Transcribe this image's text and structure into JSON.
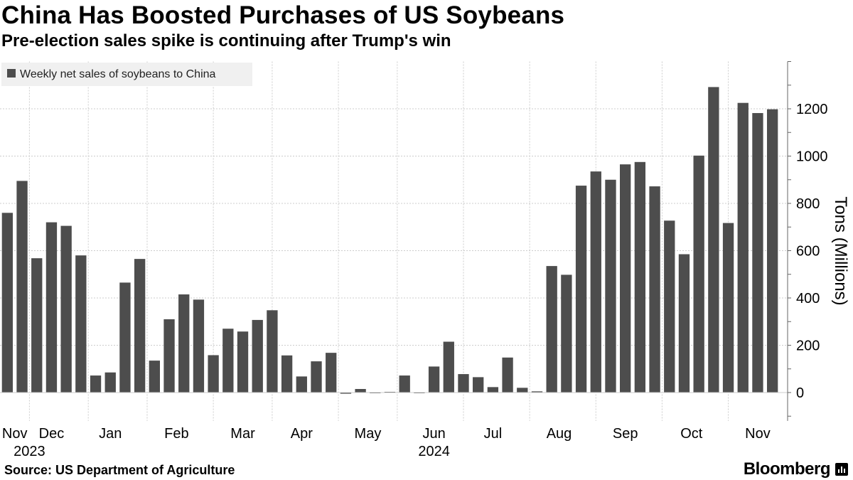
{
  "header": {
    "title": "China Has Boosted Purchases of US Soybeans",
    "subtitle": "Pre-election sales spike is continuing after Trump's win"
  },
  "footer": {
    "source": "Source: US Department of Agriculture",
    "brand": "Bloomberg",
    "brand_icon": "bloomberg-terminal-icon"
  },
  "colors": {
    "bar": "#4d4d4d",
    "grid": "#cccccc",
    "legend_bg": "#f0f0f0",
    "axis": "#666666"
  },
  "chart_data": {
    "type": "bar",
    "title": "China Has Boosted Purchases of US Soybeans",
    "subtitle": "Pre-election sales spike is continuing after Trump's win",
    "xlabel": "",
    "ylabel": "Tons (Millions)",
    "ylim": [
      -120,
      1400
    ],
    "yticks": [
      0,
      200,
      400,
      600,
      800,
      1000,
      1200
    ],
    "grid": true,
    "legend": {
      "position": "top-left",
      "entries": [
        "Weekly net sales of soybeans to China"
      ]
    },
    "series": [
      {
        "name": "Weekly net sales of soybeans to China",
        "values": [
          760,
          895,
          568,
          720,
          705,
          580,
          72,
          85,
          465,
          565,
          135,
          310,
          415,
          393,
          158,
          270,
          258,
          307,
          348,
          157,
          68,
          132,
          168,
          -5,
          15,
          -3,
          3,
          72,
          -3,
          110,
          215,
          78,
          65,
          23,
          148,
          20,
          5,
          535,
          498,
          875,
          935,
          900,
          965,
          975,
          872,
          727,
          585,
          1002,
          1292,
          717,
          1225,
          1182,
          1198
        ]
      }
    ],
    "x_month_labels": [
      {
        "label": "Nov",
        "index": 1
      },
      {
        "label": "Dec",
        "index": 3.5
      },
      {
        "label": "Jan",
        "index": 7.5
      },
      {
        "label": "Feb",
        "index": 12
      },
      {
        "label": "Mar",
        "index": 16.5
      },
      {
        "label": "Apr",
        "index": 20.5
      },
      {
        "label": "May",
        "index": 25
      },
      {
        "label": "Jun",
        "index": 29.5
      },
      {
        "label": "Jul",
        "index": 33.5
      },
      {
        "label": "Aug",
        "index": 38
      },
      {
        "label": "Sep",
        "index": 42.5
      },
      {
        "label": "Oct",
        "index": 47
      },
      {
        "label": "Nov",
        "index": 51.5
      }
    ],
    "x_year_labels": [
      {
        "label": "2023",
        "index": 2
      },
      {
        "label": "2024",
        "index": 29.5
      }
    ],
    "month_boundaries": [
      2,
      6,
      10,
      14.5,
      18.5,
      23,
      27,
      31.5,
      36,
      40.5,
      45,
      49.5
    ]
  }
}
